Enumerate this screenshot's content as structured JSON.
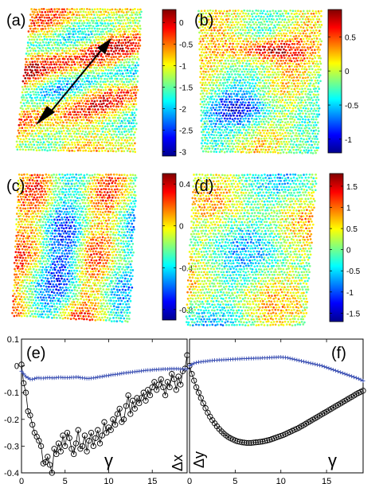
{
  "figure": {
    "panels": [
      {
        "label": "(a)",
        "colorbar_ticks": [
          "0",
          "-0.5",
          "-1",
          "-1.5",
          "-2",
          "-2.5",
          "-3"
        ],
        "colorbar_range": [
          -3.1,
          0.3
        ],
        "field": "a",
        "double_arrow": true
      },
      {
        "label": "(b)",
        "colorbar_ticks": [
          "0.5",
          "0",
          "-0.5",
          "-1"
        ],
        "colorbar_range": [
          -1.2,
          0.9
        ],
        "field": "b",
        "double_arrow": false
      },
      {
        "label": "(c)",
        "colorbar_ticks": [
          "0.4",
          "0",
          "-0.4",
          "-0.8"
        ],
        "colorbar_range": [
          -0.9,
          0.5
        ],
        "field": "c",
        "double_arrow": false
      },
      {
        "label": "(d)",
        "colorbar_ticks": [
          "1.5",
          "1",
          "0.5",
          "0",
          "-0.5",
          "-1",
          "-1.5"
        ],
        "colorbar_range": [
          -1.7,
          1.8
        ],
        "field": "d",
        "double_arrow": false
      }
    ],
    "colormap": [
      "#00008f",
      "#0000ff",
      "#00ffff",
      "#ffff00",
      "#ff0000",
      "#800000"
    ],
    "marker_color": "#000000",
    "line_color": "#3a4fb3"
  },
  "chart_data": [
    {
      "type": "line",
      "label": "(e)",
      "xlabel": "γ",
      "ylabel": "Δx",
      "xlim": [
        0,
        19
      ],
      "ylim": [
        -0.4,
        0.1
      ],
      "x_ticks": [
        "0",
        "5",
        "10",
        "15"
      ],
      "y_ticks": [
        "0.1",
        "0",
        "-0.1",
        "-0.2",
        "-0.3",
        "-0.4"
      ],
      "x": [
        0,
        0.25,
        0.5,
        0.75,
        1,
        1.25,
        1.5,
        1.75,
        2,
        2.25,
        2.5,
        2.75,
        3,
        3.25,
        3.5,
        3.75,
        4,
        4.25,
        4.5,
        4.75,
        5,
        5.25,
        5.5,
        5.75,
        6,
        6.25,
        6.5,
        6.75,
        7,
        7.25,
        7.5,
        7.75,
        8,
        8.25,
        8.5,
        8.75,
        9,
        9.25,
        9.5,
        9.75,
        10,
        10.25,
        10.5,
        10.75,
        11,
        11.25,
        11.5,
        11.75,
        12,
        12.25,
        12.5,
        12.75,
        13,
        13.25,
        13.5,
        13.75,
        14,
        14.25,
        14.5,
        14.75,
        15,
        15.25,
        15.5,
        15.75,
        16,
        16.25,
        16.5,
        16.75,
        17,
        17.25,
        17.5,
        17.75,
        18,
        18.25,
        18.5,
        18.75,
        19
      ],
      "series": [
        {
          "marker": "circle",
          "values": [
            0.005,
            -0.065,
            -0.1,
            -0.17,
            -0.185,
            -0.22,
            -0.25,
            -0.265,
            -0.28,
            -0.3,
            -0.365,
            -0.36,
            -0.34,
            -0.37,
            -0.4,
            -0.31,
            -0.33,
            -0.29,
            -0.32,
            -0.26,
            -0.3,
            -0.25,
            -0.27,
            -0.31,
            -0.33,
            -0.29,
            -0.24,
            -0.31,
            -0.3,
            -0.26,
            -0.32,
            -0.28,
            -0.25,
            -0.3,
            -0.27,
            -0.24,
            -0.29,
            -0.26,
            -0.21,
            -0.25,
            -0.23,
            -0.24,
            -0.2,
            -0.22,
            -0.18,
            -0.16,
            -0.21,
            -0.2,
            -0.15,
            -0.11,
            -0.18,
            -0.13,
            -0.16,
            -0.12,
            -0.14,
            -0.12,
            -0.1,
            -0.13,
            -0.09,
            -0.11,
            -0.08,
            -0.06,
            -0.09,
            -0.07,
            -0.05,
            -0.08,
            -0.11,
            -0.06,
            -0.08,
            -0.03,
            -0.05,
            -0.09,
            -0.04,
            -0.07,
            -0.02,
            -0.01,
            0.04
          ]
        },
        {
          "marker": "plus",
          "values": [
            -0.02,
            -0.03,
            -0.04,
            -0.045,
            -0.05,
            -0.05,
            -0.048,
            -0.045,
            -0.045,
            -0.046,
            -0.046,
            -0.045,
            -0.044,
            -0.044,
            -0.045,
            -0.045,
            -0.044,
            -0.043,
            -0.043,
            -0.044,
            -0.044,
            -0.044,
            -0.044,
            -0.043,
            -0.043,
            -0.042,
            -0.042,
            -0.044,
            -0.045,
            -0.046,
            -0.047,
            -0.047,
            -0.046,
            -0.045,
            -0.044,
            -0.042,
            -0.041,
            -0.04,
            -0.038,
            -0.037,
            -0.036,
            -0.034,
            -0.033,
            -0.032,
            -0.031,
            -0.03,
            -0.028,
            -0.027,
            -0.026,
            -0.025,
            -0.024,
            -0.023,
            -0.022,
            -0.021,
            -0.02,
            -0.019,
            -0.018,
            -0.017,
            -0.016,
            -0.016,
            -0.015,
            -0.014,
            -0.014,
            -0.013,
            -0.013,
            -0.012,
            -0.012,
            -0.012,
            -0.011,
            -0.011,
            -0.011,
            -0.011,
            -0.011,
            -0.012,
            -0.012,
            -0.012,
            -0.012
          ]
        }
      ]
    },
    {
      "type": "line",
      "label": "(f)",
      "xlabel": "γ",
      "ylabel": "Δy",
      "xlim": [
        0,
        19
      ],
      "ylim": [
        -0.4,
        0.1
      ],
      "x_ticks": [
        "0",
        "5",
        "10",
        "15"
      ],
      "y_ticks": [],
      "x": [
        0,
        0.25,
        0.5,
        0.75,
        1,
        1.25,
        1.5,
        1.75,
        2,
        2.25,
        2.5,
        2.75,
        3,
        3.25,
        3.5,
        3.75,
        4,
        4.25,
        4.5,
        4.75,
        5,
        5.25,
        5.5,
        5.75,
        6,
        6.25,
        6.5,
        6.75,
        7,
        7.25,
        7.5,
        7.75,
        8,
        8.25,
        8.5,
        8.75,
        9,
        9.25,
        9.5,
        9.75,
        10,
        10.25,
        10.5,
        10.75,
        11,
        11.25,
        11.5,
        11.75,
        12,
        12.25,
        12.5,
        12.75,
        13,
        13.25,
        13.5,
        13.75,
        14,
        14.25,
        14.5,
        14.75,
        15,
        15.25,
        15.5,
        15.75,
        16,
        16.25,
        16.5,
        16.75,
        17,
        17.25,
        17.5,
        17.75,
        18,
        18.25,
        18.5,
        18.75,
        19
      ],
      "series": [
        {
          "marker": "circle",
          "values": [
            0.0,
            -0.03,
            -0.055,
            -0.08,
            -0.1,
            -0.12,
            -0.14,
            -0.158,
            -0.175,
            -0.19,
            -0.203,
            -0.215,
            -0.226,
            -0.236,
            -0.245,
            -0.253,
            -0.26,
            -0.266,
            -0.271,
            -0.275,
            -0.279,
            -0.282,
            -0.284,
            -0.286,
            -0.287,
            -0.288,
            -0.288,
            -0.288,
            -0.287,
            -0.286,
            -0.285,
            -0.284,
            -0.283,
            -0.281,
            -0.279,
            -0.277,
            -0.274,
            -0.271,
            -0.268,
            -0.265,
            -0.262,
            -0.259,
            -0.255,
            -0.251,
            -0.247,
            -0.243,
            -0.239,
            -0.235,
            -0.231,
            -0.226,
            -0.221,
            -0.216,
            -0.211,
            -0.206,
            -0.201,
            -0.196,
            -0.191,
            -0.186,
            -0.181,
            -0.176,
            -0.171,
            -0.166,
            -0.161,
            -0.156,
            -0.151,
            -0.146,
            -0.141,
            -0.136,
            -0.131,
            -0.126,
            -0.121,
            -0.116,
            -0.111,
            -0.106,
            -0.101,
            -0.097,
            -0.093
          ]
        },
        {
          "marker": "plus",
          "values": [
            0.0,
            0.005,
            0.01,
            0.012,
            0.014,
            0.015,
            0.016,
            0.017,
            0.018,
            0.019,
            0.02,
            0.021,
            0.021,
            0.022,
            0.022,
            0.023,
            0.023,
            0.024,
            0.024,
            0.025,
            0.025,
            0.026,
            0.026,
            0.027,
            0.027,
            0.027,
            0.028,
            0.028,
            0.028,
            0.029,
            0.029,
            0.029,
            0.03,
            0.03,
            0.03,
            0.031,
            0.031,
            0.032,
            0.032,
            0.033,
            0.033,
            0.032,
            0.031,
            0.03,
            0.028,
            0.026,
            0.024,
            0.022,
            0.02,
            0.018,
            0.016,
            0.014,
            0.012,
            0.01,
            0.008,
            0.006,
            0.004,
            0.002,
            0.0,
            -0.003,
            -0.006,
            -0.009,
            -0.012,
            -0.015,
            -0.018,
            -0.021,
            -0.024,
            -0.027,
            -0.03,
            -0.033,
            -0.036,
            -0.039,
            -0.042,
            -0.045,
            -0.048,
            -0.052,
            -0.056
          ]
        }
      ]
    }
  ]
}
